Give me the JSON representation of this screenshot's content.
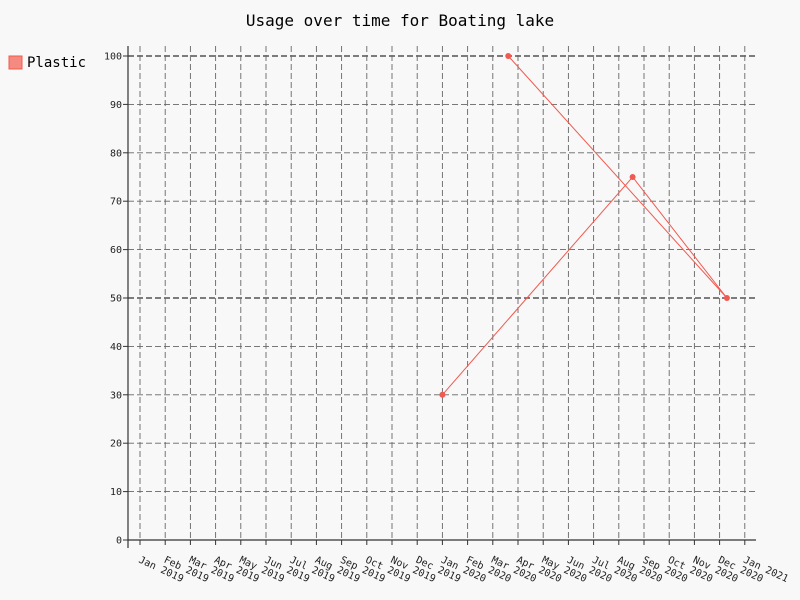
{
  "chart_data": {
    "type": "line",
    "title": "Usage over time for Boating lake",
    "xlabel": "",
    "ylabel": "",
    "x_ticks": [
      "Jan 2019",
      "Feb 2019",
      "Mar 2019",
      "Apr 2019",
      "May 2019",
      "Jun 2019",
      "Jul 2019",
      "Aug 2019",
      "Sep 2019",
      "Oct 2019",
      "Nov 2019",
      "Dec 2019",
      "Jan 2020",
      "Feb 2020",
      "Mar 2020",
      "Apr 2020",
      "May 2020",
      "Jun 2020",
      "Jul 2020",
      "Aug 2020",
      "Sep 2020",
      "Oct 2020",
      "Nov 2020",
      "Dec 2020",
      "Jan 2021"
    ],
    "y_ticks": [
      0,
      10,
      20,
      30,
      40,
      50,
      60,
      70,
      80,
      90,
      100
    ],
    "ylim": [
      0,
      100
    ],
    "xlim": [
      "2018-12-15",
      "2021-01-15"
    ],
    "grid": true,
    "legend_position": "top-left",
    "series": [
      {
        "name": "Plastic",
        "color": "#f05a50",
        "points": [
          {
            "x": "2020-01-01",
            "y": 30
          },
          {
            "x": "2020-08-18",
            "y": 75
          },
          {
            "x": "2020-12-10",
            "y": 50
          },
          {
            "x": "2020-03-20",
            "y": 100
          }
        ]
      }
    ]
  }
}
